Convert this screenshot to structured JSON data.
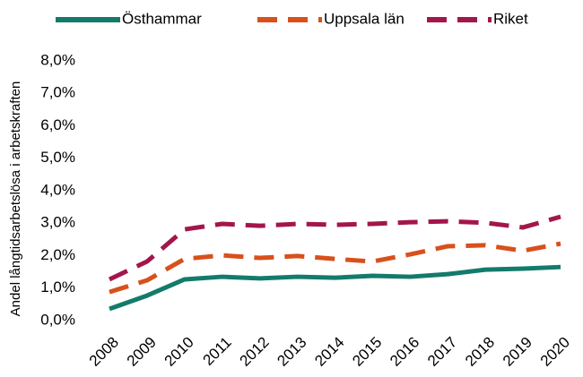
{
  "chart_data": {
    "type": "line",
    "y_label": "Andel långtidsarbetslösa i arbetskraften",
    "categories": [
      "2008",
      "2009",
      "2010",
      "2011",
      "2012",
      "2013",
      "2014",
      "2015",
      "2016",
      "2017",
      "2018",
      "2019",
      "2020"
    ],
    "series": [
      {
        "name": "Östhammar",
        "color": "#137b6c",
        "line_style": "solid",
        "values": [
          0.36,
          0.77,
          1.27,
          1.35,
          1.3,
          1.35,
          1.32,
          1.38,
          1.35,
          1.43,
          1.57,
          1.6,
          1.65
        ]
      },
      {
        "name": "Uppsala län",
        "color": "#d8501c",
        "line_style": "dashed",
        "values": [
          0.88,
          1.24,
          1.9,
          2.01,
          1.93,
          1.99,
          1.9,
          1.82,
          2.04,
          2.29,
          2.32,
          2.15,
          2.37
        ]
      },
      {
        "name": "Riket",
        "color": "#a3164b",
        "line_style": "dashed",
        "values": [
          1.27,
          1.82,
          2.81,
          2.98,
          2.92,
          2.98,
          2.95,
          2.98,
          3.03,
          3.06,
          3.01,
          2.87,
          3.2
        ]
      }
    ],
    "ylim": [
      0,
      8
    ],
    "yticks": [
      {
        "value": 0,
        "label": "0,0%"
      },
      {
        "value": 1,
        "label": "1,0%"
      },
      {
        "value": 2,
        "label": "2,0%"
      },
      {
        "value": 3,
        "label": "3,0%"
      },
      {
        "value": 4,
        "label": "4,0%"
      },
      {
        "value": 5,
        "label": "5,0%"
      },
      {
        "value": 6,
        "label": "6,0%"
      },
      {
        "value": 7,
        "label": "7,0%"
      },
      {
        "value": 8,
        "label": "8,0%"
      }
    ],
    "grid": false,
    "legend": "top"
  }
}
